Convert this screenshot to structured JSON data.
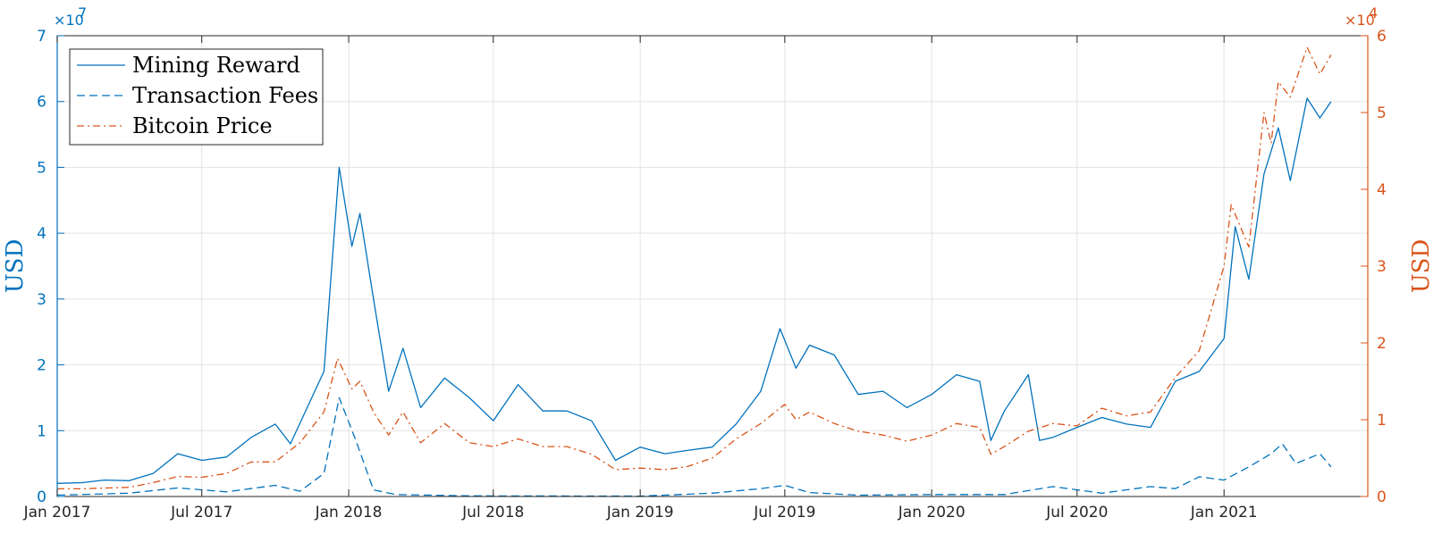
{
  "chart_data": {
    "type": "line",
    "title": "",
    "xlabel": "",
    "x_ticks": [
      "Jan 2017",
      "Jul 2017",
      "Jan 2018",
      "Jul 2018",
      "Jan 2019",
      "Jul 2019",
      "Jan 2020",
      "Jul 2020",
      "Jan 2021"
    ],
    "xlim": [
      "2017-01-01",
      "2021-06-30"
    ],
    "grid": true,
    "legend_position": "top-left",
    "y_left": {
      "label": "USD",
      "ylim": [
        0,
        70000000
      ],
      "tick_labels": [
        "0",
        "1",
        "2",
        "3",
        "4",
        "5",
        "6",
        "7"
      ],
      "multiplier_base": "×10",
      "multiplier_exp": "7",
      "color": "#0072BD"
    },
    "y_right": {
      "label": "USD",
      "ylim": [
        0,
        60000
      ],
      "tick_labels": [
        "0",
        "1",
        "2",
        "3",
        "4",
        "5",
        "6"
      ],
      "multiplier_base": "×10",
      "multiplier_exp": "4",
      "color": "#D95319"
    },
    "series": [
      {
        "name": "Mining Reward",
        "axis": "left",
        "color": "#0072BD",
        "dash": "solid",
        "points": [
          [
            "2017-01-01",
            2000000
          ],
          [
            "2017-02-01",
            2100000
          ],
          [
            "2017-03-01",
            2500000
          ],
          [
            "2017-04-01",
            2400000
          ],
          [
            "2017-05-01",
            3500000
          ],
          [
            "2017-06-01",
            6500000
          ],
          [
            "2017-07-01",
            5500000
          ],
          [
            "2017-08-01",
            6000000
          ],
          [
            "2017-09-01",
            9000000
          ],
          [
            "2017-10-01",
            11000000
          ],
          [
            "2017-10-20",
            8000000
          ],
          [
            "2017-11-10",
            13500000
          ],
          [
            "2017-12-01",
            19000000
          ],
          [
            "2017-12-20",
            50000000
          ],
          [
            "2018-01-05",
            38000000
          ],
          [
            "2018-01-15",
            43000000
          ],
          [
            "2018-02-01",
            30000000
          ],
          [
            "2018-02-20",
            16000000
          ],
          [
            "2018-03-10",
            22500000
          ],
          [
            "2018-04-01",
            13500000
          ],
          [
            "2018-05-01",
            18000000
          ],
          [
            "2018-06-01",
            15000000
          ],
          [
            "2018-07-01",
            11500000
          ],
          [
            "2018-08-01",
            17000000
          ],
          [
            "2018-09-01",
            13000000
          ],
          [
            "2018-10-01",
            13000000
          ],
          [
            "2018-11-01",
            11500000
          ],
          [
            "2018-12-01",
            5500000
          ],
          [
            "2019-01-01",
            7500000
          ],
          [
            "2019-02-01",
            6500000
          ],
          [
            "2019-03-01",
            7000000
          ],
          [
            "2019-04-01",
            7500000
          ],
          [
            "2019-05-01",
            11000000
          ],
          [
            "2019-06-01",
            16000000
          ],
          [
            "2019-06-25",
            25500000
          ],
          [
            "2019-07-15",
            19500000
          ],
          [
            "2019-08-01",
            23000000
          ],
          [
            "2019-09-01",
            21500000
          ],
          [
            "2019-10-01",
            15500000
          ],
          [
            "2019-11-01",
            16000000
          ],
          [
            "2019-12-01",
            13500000
          ],
          [
            "2020-01-01",
            15500000
          ],
          [
            "2020-02-01",
            18500000
          ],
          [
            "2020-03-01",
            17500000
          ],
          [
            "2020-03-15",
            8500000
          ],
          [
            "2020-04-01",
            13000000
          ],
          [
            "2020-05-01",
            18500000
          ],
          [
            "2020-05-15",
            8500000
          ],
          [
            "2020-06-01",
            9000000
          ],
          [
            "2020-07-01",
            10500000
          ],
          [
            "2020-08-01",
            12000000
          ],
          [
            "2020-09-01",
            11000000
          ],
          [
            "2020-10-01",
            10500000
          ],
          [
            "2020-11-01",
            17500000
          ],
          [
            "2020-12-01",
            19000000
          ],
          [
            "2021-01-01",
            24000000
          ],
          [
            "2021-01-15",
            41000000
          ],
          [
            "2021-02-01",
            33000000
          ],
          [
            "2021-02-20",
            49000000
          ],
          [
            "2021-03-10",
            56000000
          ],
          [
            "2021-03-25",
            48000000
          ],
          [
            "2021-04-15",
            60500000
          ],
          [
            "2021-05-01",
            57500000
          ],
          [
            "2021-05-15",
            60000000
          ]
        ]
      },
      {
        "name": "Transaction Fees",
        "axis": "left",
        "color": "#0072BD",
        "dash": "dashed",
        "points": [
          [
            "2017-01-01",
            200000
          ],
          [
            "2017-04-01",
            500000
          ],
          [
            "2017-06-01",
            1300000
          ],
          [
            "2017-08-01",
            700000
          ],
          [
            "2017-10-01",
            1700000
          ],
          [
            "2017-11-01",
            800000
          ],
          [
            "2017-12-01",
            3500000
          ],
          [
            "2017-12-20",
            15000000
          ],
          [
            "2018-01-10",
            8500000
          ],
          [
            "2018-02-01",
            1000000
          ],
          [
            "2018-03-01",
            300000
          ],
          [
            "2018-06-01",
            100000
          ],
          [
            "2019-01-01",
            50000
          ],
          [
            "2019-04-01",
            500000
          ],
          [
            "2019-06-01",
            1200000
          ],
          [
            "2019-07-01",
            1700000
          ],
          [
            "2019-08-01",
            600000
          ],
          [
            "2019-10-01",
            200000
          ],
          [
            "2020-01-01",
            300000
          ],
          [
            "2020-04-01",
            300000
          ],
          [
            "2020-06-01",
            1500000
          ],
          [
            "2020-08-01",
            500000
          ],
          [
            "2020-10-01",
            1500000
          ],
          [
            "2020-11-01",
            1200000
          ],
          [
            "2020-12-01",
            3000000
          ],
          [
            "2021-01-01",
            2500000
          ],
          [
            "2021-02-01",
            4500000
          ],
          [
            "2021-03-01",
            6500000
          ],
          [
            "2021-03-15",
            8000000
          ],
          [
            "2021-04-01",
            5000000
          ],
          [
            "2021-05-01",
            6500000
          ],
          [
            "2021-05-15",
            4500000
          ]
        ]
      },
      {
        "name": "Bitcoin Price",
        "axis": "right",
        "color": "#D95319",
        "dash": "dashdot",
        "points": [
          [
            "2017-01-01",
            1000
          ],
          [
            "2017-02-01",
            1000
          ],
          [
            "2017-03-01",
            1100
          ],
          [
            "2017-04-01",
            1200
          ],
          [
            "2017-05-01",
            1800
          ],
          [
            "2017-06-01",
            2600
          ],
          [
            "2017-07-01",
            2500
          ],
          [
            "2017-08-01",
            3000
          ],
          [
            "2017-09-01",
            4500
          ],
          [
            "2017-10-01",
            4500
          ],
          [
            "2017-11-01",
            7000
          ],
          [
            "2017-12-01",
            11000
          ],
          [
            "2017-12-18",
            18000
          ],
          [
            "2018-01-05",
            14000
          ],
          [
            "2018-01-15",
            15000
          ],
          [
            "2018-02-01",
            11000
          ],
          [
            "2018-02-20",
            8000
          ],
          [
            "2018-03-10",
            11000
          ],
          [
            "2018-04-01",
            7000
          ],
          [
            "2018-05-01",
            9500
          ],
          [
            "2018-06-01",
            7000
          ],
          [
            "2018-07-01",
            6500
          ],
          [
            "2018-08-01",
            7500
          ],
          [
            "2018-09-01",
            6500
          ],
          [
            "2018-10-01",
            6500
          ],
          [
            "2018-11-01",
            5500
          ],
          [
            "2018-12-01",
            3500
          ],
          [
            "2019-01-01",
            3700
          ],
          [
            "2019-02-01",
            3500
          ],
          [
            "2019-03-01",
            3900
          ],
          [
            "2019-04-01",
            5000
          ],
          [
            "2019-05-01",
            7500
          ],
          [
            "2019-06-01",
            9500
          ],
          [
            "2019-07-01",
            12000
          ],
          [
            "2019-07-15",
            10000
          ],
          [
            "2019-08-01",
            11000
          ],
          [
            "2019-09-01",
            9500
          ],
          [
            "2019-10-01",
            8500
          ],
          [
            "2019-11-01",
            8000
          ],
          [
            "2019-12-01",
            7200
          ],
          [
            "2020-01-01",
            8000
          ],
          [
            "2020-02-01",
            9500
          ],
          [
            "2020-03-01",
            9000
          ],
          [
            "2020-03-15",
            5500
          ],
          [
            "2020-04-01",
            6500
          ],
          [
            "2020-05-01",
            8500
          ],
          [
            "2020-06-01",
            9500
          ],
          [
            "2020-07-01",
            9200
          ],
          [
            "2020-08-01",
            11500
          ],
          [
            "2020-09-01",
            10500
          ],
          [
            "2020-10-01",
            11000
          ],
          [
            "2020-11-01",
            15500
          ],
          [
            "2020-12-01",
            19000
          ],
          [
            "2021-01-01",
            30000
          ],
          [
            "2021-01-10",
            38000
          ],
          [
            "2021-02-01",
            32500
          ],
          [
            "2021-02-20",
            50000
          ],
          [
            "2021-03-01",
            46000
          ],
          [
            "2021-03-10",
            54000
          ],
          [
            "2021-03-25",
            52000
          ],
          [
            "2021-04-15",
            58500
          ],
          [
            "2021-05-01",
            55000
          ],
          [
            "2021-05-15",
            57500
          ]
        ]
      }
    ]
  }
}
